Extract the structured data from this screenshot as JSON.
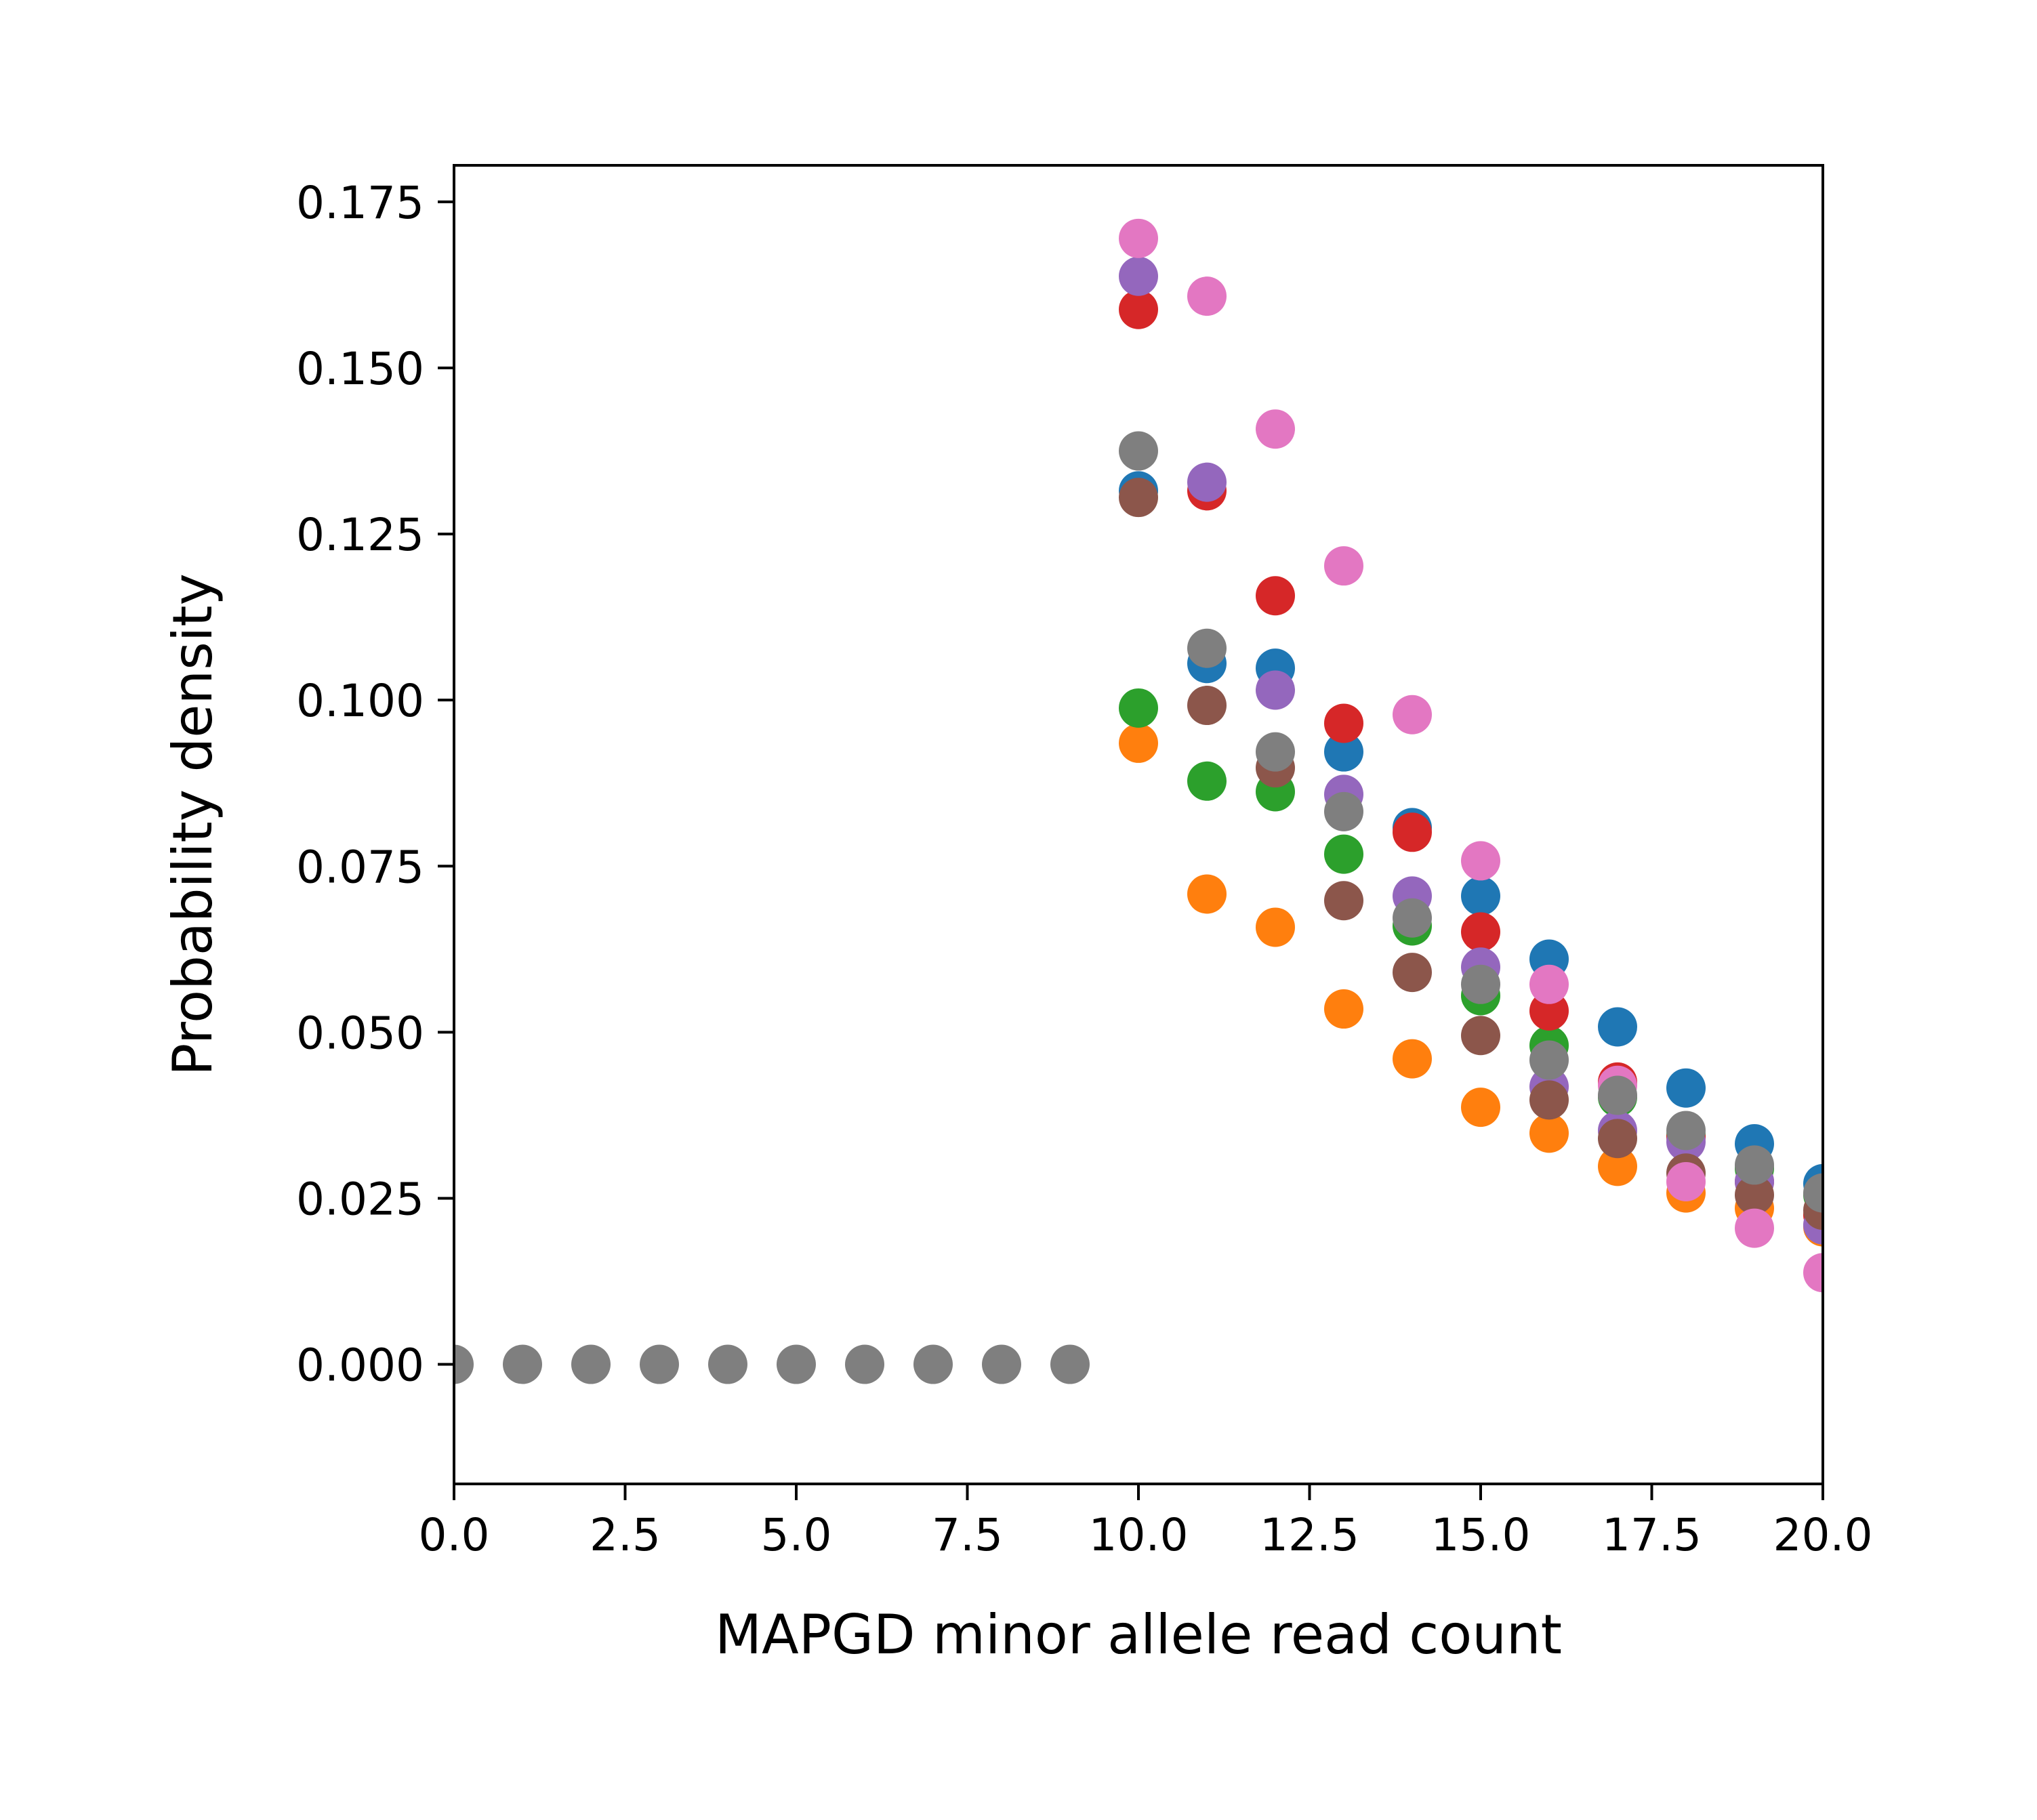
{
  "chart_data": {
    "type": "scatter",
    "title": "",
    "xlabel": "MAPGD minor allele read count",
    "ylabel": "Probability density",
    "xlim": [
      0,
      20
    ],
    "ylim": [
      -0.018,
      0.1805
    ],
    "xticks": [
      "0.0",
      "2.5",
      "5.0",
      "7.5",
      "10.0",
      "12.5",
      "15.0",
      "17.5",
      "20.0"
    ],
    "yticks": [
      "0.000",
      "0.025",
      "0.050",
      "0.075",
      "0.100",
      "0.125",
      "0.150",
      "0.175"
    ],
    "grid": false,
    "legend": "none",
    "series": [
      {
        "color": "#1f77b4",
        "points": [
          [
            10,
            0.1315
          ],
          [
            11,
            0.1055
          ],
          [
            12,
            0.1048
          ],
          [
            13,
            0.0922
          ],
          [
            14,
            0.0808
          ],
          [
            15,
            0.0705
          ],
          [
            16,
            0.061
          ],
          [
            17,
            0.0508
          ],
          [
            18,
            0.0416
          ],
          [
            19,
            0.0332
          ],
          [
            20,
            0.0272
          ]
        ]
      },
      {
        "color": "#ff7f0e",
        "points": [
          [
            10,
            0.0935
          ],
          [
            11,
            0.0708
          ],
          [
            12,
            0.0658
          ],
          [
            13,
            0.0535
          ],
          [
            14,
            0.046
          ],
          [
            15,
            0.0387
          ],
          [
            16,
            0.0348
          ],
          [
            17,
            0.0298
          ],
          [
            18,
            0.0258
          ],
          [
            19,
            0.0235
          ],
          [
            20,
            0.0207
          ]
        ]
      },
      {
        "color": "#2ca02c",
        "points": [
          [
            10,
            0.0988
          ],
          [
            11,
            0.0878
          ],
          [
            12,
            0.0862
          ],
          [
            13,
            0.0768
          ],
          [
            14,
            0.066
          ],
          [
            15,
            0.0555
          ],
          [
            16,
            0.048
          ],
          [
            17,
            0.0402
          ],
          [
            18,
            0.0345
          ],
          [
            19,
            0.0295
          ],
          [
            20,
            0.0255
          ]
        ]
      },
      {
        "color": "#d62728",
        "points": [
          [
            10,
            0.1588
          ],
          [
            11,
            0.1315
          ],
          [
            12,
            0.1157
          ],
          [
            13,
            0.0965
          ],
          [
            14,
            0.0801
          ],
          [
            15,
            0.0651
          ],
          [
            16,
            0.0532
          ],
          [
            17,
            0.0425
          ],
          [
            18,
            0.0342
          ],
          [
            19,
            0.0275
          ],
          [
            20,
            0.0225
          ]
        ]
      },
      {
        "color": "#9467bd",
        "points": [
          [
            10,
            0.1638
          ],
          [
            11,
            0.1328
          ],
          [
            12,
            0.1015
          ],
          [
            13,
            0.0858
          ],
          [
            14,
            0.0705
          ],
          [
            15,
            0.0598
          ],
          [
            16,
            0.0418
          ],
          [
            17,
            0.0352
          ],
          [
            18,
            0.0335
          ],
          [
            19,
            0.0275
          ],
          [
            20,
            0.021
          ]
        ]
      },
      {
        "color": "#8c564b",
        "points": [
          [
            10,
            0.1305
          ],
          [
            11,
            0.0992
          ],
          [
            12,
            0.0898
          ],
          [
            13,
            0.0698
          ],
          [
            14,
            0.059
          ],
          [
            15,
            0.0495
          ],
          [
            16,
            0.0398
          ],
          [
            17,
            0.034
          ],
          [
            18,
            0.0288
          ],
          [
            19,
            0.0255
          ],
          [
            20,
            0.0232
          ]
        ]
      },
      {
        "color": "#e377c2",
        "points": [
          [
            10,
            0.1695
          ],
          [
            11,
            0.1608
          ],
          [
            12,
            0.1408
          ],
          [
            13,
            0.1202
          ],
          [
            14,
            0.0978
          ],
          [
            15,
            0.0758
          ],
          [
            16,
            0.0572
          ],
          [
            17,
            0.042
          ],
          [
            18,
            0.0275
          ],
          [
            19,
            0.0205
          ],
          [
            20,
            0.0138
          ]
        ]
      },
      {
        "color": "#7f7f7f",
        "points": [
          [
            0,
            0
          ],
          [
            1,
            0
          ],
          [
            2,
            0
          ],
          [
            3,
            0
          ],
          [
            4,
            0
          ],
          [
            5,
            0
          ],
          [
            6,
            0
          ],
          [
            7,
            0
          ],
          [
            8,
            0
          ],
          [
            9,
            0
          ],
          [
            10,
            0.1375
          ],
          [
            11,
            0.1078
          ],
          [
            12,
            0.0922
          ],
          [
            13,
            0.0832
          ],
          [
            14,
            0.0672
          ],
          [
            15,
            0.0572
          ],
          [
            16,
            0.0458
          ],
          [
            17,
            0.0405
          ],
          [
            18,
            0.0352
          ],
          [
            19,
            0.03
          ],
          [
            20,
            0.0258
          ]
        ]
      }
    ]
  }
}
